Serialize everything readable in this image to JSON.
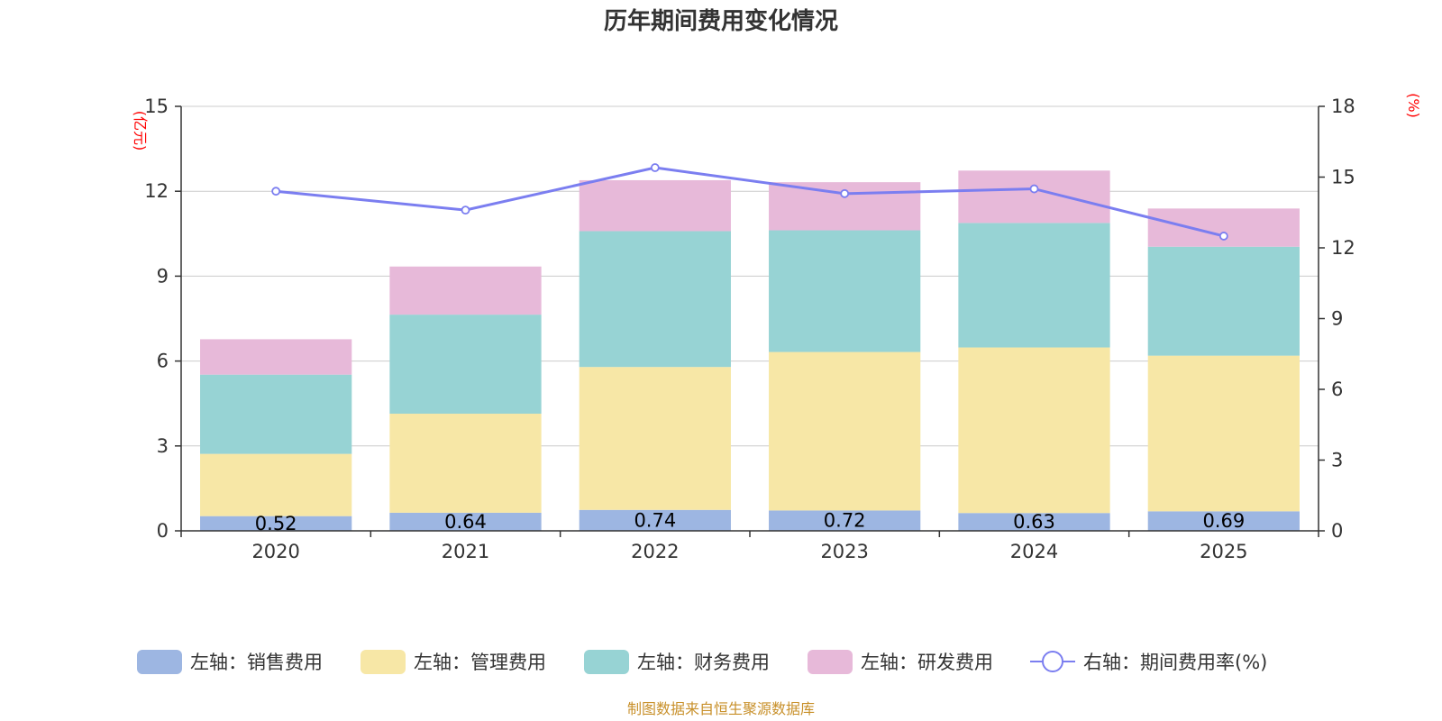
{
  "chart_data": {
    "type": "bar",
    "stacked": true,
    "title": "历年期间费用变化情况",
    "ylabel_left": "(亿元)",
    "ylabel_right": "(%)",
    "ylim_left": [
      0,
      15
    ],
    "yticks_left": [
      0,
      3,
      6,
      9,
      12,
      15
    ],
    "ylim_right": [
      0,
      18
    ],
    "yticks_right": [
      0,
      3,
      6,
      9,
      12,
      15,
      18
    ],
    "categories": [
      "2020",
      "2021",
      "2022",
      "2023",
      "2024",
      "2025"
    ],
    "series": [
      {
        "name": "左轴：销售费用",
        "axis": "left",
        "type": "bar",
        "color": "#9db6e2",
        "values": [
          0.52,
          0.64,
          0.74,
          0.72,
          0.63,
          0.69
        ],
        "labels": [
          "0.52",
          "0.64",
          "0.74",
          "0.72",
          "0.63",
          "0.69"
        ]
      },
      {
        "name": "左轴：管理费用",
        "axis": "left",
        "type": "bar",
        "color": "#f7e7a6",
        "values": [
          2.2,
          3.5,
          5.05,
          5.6,
          5.85,
          5.5
        ]
      },
      {
        "name": "左轴：财务费用",
        "axis": "left",
        "type": "bar",
        "color": "#97d3d4",
        "values": [
          2.8,
          3.5,
          4.8,
          4.3,
          4.4,
          3.85
        ]
      },
      {
        "name": "左轴：研发费用",
        "axis": "left",
        "type": "bar",
        "color": "#e7b9d9",
        "values": [
          1.25,
          1.7,
          1.8,
          1.7,
          1.85,
          1.35
        ]
      },
      {
        "name": "右轴：期间费用率(%)",
        "axis": "right",
        "type": "line",
        "color": "#7b7ef0",
        "values": [
          14.4,
          13.6,
          15.4,
          14.3,
          14.5,
          12.5
        ]
      }
    ],
    "legend_position": "bottom",
    "grid": true
  },
  "footer": {
    "source": "制图数据来自恒生聚源数据库"
  }
}
